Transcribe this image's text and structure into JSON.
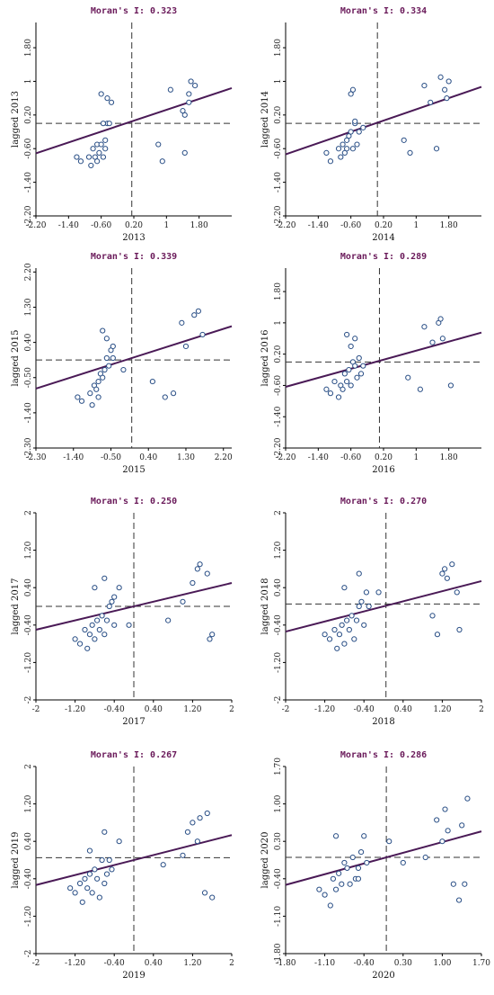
{
  "colors": {
    "title": "#6a1a5a",
    "point": "#2a4f86",
    "fit_line": "#4a1a56",
    "axis": "#000000"
  },
  "chart_data": [
    {
      "type": "scatter",
      "title": "Moran's I: 0.323",
      "xlabel": "2013",
      "ylabel": "lagged 2013",
      "xlim": [
        -2.2,
        2.6
      ],
      "ylim": [
        -2.2,
        2.4
      ],
      "xticks": [
        "-2.20",
        "-1.40",
        "-0.60",
        "0.20",
        "1",
        "1.80"
      ],
      "xtick_values": [
        -2.2,
        -1.4,
        -0.6,
        0.2,
        1,
        1.8
      ],
      "yticks": [
        "1.80",
        "1",
        "0.20",
        "-0.60",
        "-1.40",
        "-2.20"
      ],
      "ytick_values": [
        1.8,
        1.0,
        0.2,
        -0.6,
        -1.4,
        -2.2
      ],
      "vline": 0.15,
      "hline": 0.0,
      "slope": 0.323,
      "x": [
        -1.2,
        -1.1,
        -0.9,
        -0.85,
        -0.8,
        -0.75,
        -0.7,
        -0.7,
        -0.65,
        -0.6,
        -0.55,
        -0.5,
        -0.5,
        -0.45,
        -0.4,
        -0.55,
        -0.45,
        -0.6,
        -0.35,
        0.8,
        0.9,
        1.1,
        1.4,
        1.45,
        1.55,
        1.6,
        1.7,
        1.55,
        1.45
      ],
      "y": [
        -0.8,
        -0.9,
        -0.8,
        -1.0,
        -0.6,
        -0.8,
        -0.5,
        -0.9,
        -0.7,
        -0.5,
        -0.8,
        -0.6,
        -0.4,
        0.0,
        0.0,
        0.0,
        0.6,
        0.7,
        0.5,
        -0.5,
        -0.9,
        0.8,
        0.3,
        0.2,
        0.7,
        1.0,
        0.9,
        0.5,
        -0.7
      ]
    },
    {
      "type": "scatter",
      "title": "Moran's I: 0.334",
      "xlabel": "2014",
      "ylabel": "lagged 2014",
      "xlim": [
        -2.2,
        2.6
      ],
      "ylim": [
        -2.2,
        2.4
      ],
      "xticks": [
        "-2.20",
        "-1.40",
        "-0.60",
        "0.20",
        "1",
        "1.80"
      ],
      "xtick_values": [
        -2.2,
        -1.4,
        -0.6,
        0.2,
        1,
        1.8
      ],
      "yticks": [
        "1.80",
        "1",
        "0.20",
        "-0.60",
        "-1.40",
        "-2.20"
      ],
      "ytick_values": [
        1.8,
        1.0,
        0.2,
        -0.6,
        -1.4,
        -2.2
      ],
      "vline": 0.05,
      "hline": 0.0,
      "slope": 0.334,
      "x": [
        -1.2,
        -1.1,
        -0.9,
        -0.85,
        -0.8,
        -0.75,
        -0.7,
        -0.7,
        -0.65,
        -0.6,
        -0.55,
        -0.5,
        -0.5,
        -0.45,
        -0.4,
        -0.6,
        -0.55,
        -0.3,
        0.7,
        0.85,
        1.2,
        1.35,
        1.5,
        1.6,
        1.7,
        1.75,
        1.8
      ],
      "y": [
        -0.7,
        -0.9,
        -0.6,
        -0.8,
        -0.5,
        -0.7,
        -0.4,
        -0.6,
        -0.3,
        -0.2,
        -0.6,
        0.0,
        0.05,
        -0.5,
        -0.2,
        0.7,
        0.8,
        -0.1,
        -0.4,
        -0.7,
        0.9,
        0.5,
        -0.6,
        1.1,
        0.8,
        0.6,
        1.0
      ]
    },
    {
      "type": "scatter",
      "title": "Moran's I: 0.339",
      "xlabel": "2015",
      "ylabel": "lagged 2015",
      "xlim": [
        -2.3,
        2.4
      ],
      "ylim": [
        -2.3,
        2.3
      ],
      "xticks": [
        "-2.30",
        "-1.40",
        "-0.50",
        "0.40",
        "1.30",
        "2.20"
      ],
      "xtick_values": [
        -2.3,
        -1.4,
        -0.5,
        0.4,
        1.3,
        2.2
      ],
      "yticks": [
        "2.20",
        "1.30",
        "0.40",
        "-0.50",
        "-1.40",
        "-2.30"
      ],
      "ytick_values": [
        2.2,
        1.3,
        0.4,
        -0.5,
        -1.4,
        -2.3
      ],
      "vline": 0.0,
      "hline": -0.05,
      "slope": 0.339,
      "x": [
        -1.3,
        -1.2,
        -1.0,
        -0.95,
        -0.9,
        -0.85,
        -0.8,
        -0.8,
        -0.75,
        -0.7,
        -0.65,
        -0.6,
        -0.55,
        -0.5,
        -0.45,
        -0.7,
        -0.6,
        -0.45,
        -0.2,
        0.5,
        0.8,
        1.0,
        1.2,
        1.3,
        1.5,
        1.6,
        1.7
      ],
      "y": [
        -1.0,
        -1.1,
        -0.9,
        -1.2,
        -0.7,
        -0.8,
        -0.6,
        -1.0,
        -0.4,
        -0.5,
        -0.3,
        0.0,
        -0.2,
        0.2,
        0.0,
        0.7,
        0.5,
        0.3,
        -0.3,
        -0.6,
        -1.0,
        -0.9,
        0.9,
        0.3,
        1.1,
        1.2,
        0.6
      ]
    },
    {
      "type": "scatter",
      "title": "Moran's I: 0.289",
      "xlabel": "2016",
      "ylabel": "lagged 2016",
      "xlim": [
        -2.2,
        2.6
      ],
      "ylim": [
        -2.2,
        2.4
      ],
      "xticks": [
        "-2.20",
        "-1.40",
        "-0.60",
        "0.20",
        "1",
        "1.80"
      ],
      "xtick_values": [
        -2.2,
        -1.4,
        -0.6,
        0.2,
        1,
        1.8
      ],
      "yticks": [
        "1.80",
        "1",
        "0.20",
        "-0.60",
        "-1.40",
        "-2.20"
      ],
      "ytick_values": [
        1.8,
        1.0,
        0.2,
        -0.6,
        -1.4,
        -2.2
      ],
      "vline": 0.1,
      "hline": 0.0,
      "slope": 0.289,
      "x": [
        -1.2,
        -1.1,
        -1.0,
        -0.9,
        -0.85,
        -0.8,
        -0.75,
        -0.7,
        -0.65,
        -0.6,
        -0.55,
        -0.5,
        -0.45,
        -0.4,
        -0.35,
        -0.3,
        -0.7,
        -0.5,
        -0.6,
        0.8,
        1.1,
        1.2,
        1.4,
        1.55,
        1.6,
        1.65,
        1.85
      ],
      "y": [
        -0.7,
        -0.8,
        -0.5,
        -0.9,
        -0.6,
        -0.7,
        -0.3,
        -0.5,
        -0.2,
        -0.6,
        0.0,
        -0.1,
        -0.4,
        0.1,
        -0.3,
        -0.1,
        0.7,
        0.6,
        0.4,
        -0.4,
        -0.7,
        0.9,
        0.5,
        1.0,
        1.1,
        0.6,
        -0.6
      ]
    },
    {
      "type": "scatter",
      "title": "Moran's I: 0.250",
      "xlabel": "2017",
      "ylabel": "lagged 2017",
      "xlim": [
        -2,
        2
      ],
      "ylim": [
        -2,
        2
      ],
      "xticks": [
        "-2",
        "-1.20",
        "-0.40",
        "0.40",
        "1.20",
        "2"
      ],
      "xtick_values": [
        -2,
        -1.2,
        -0.4,
        0.4,
        1.2,
        2
      ],
      "yticks": [
        "2",
        "1.20",
        "0.40",
        "-0.40",
        "-1.20",
        "-2"
      ],
      "ytick_values": [
        2,
        1.2,
        0.4,
        -0.4,
        -1.2,
        -2
      ],
      "vline": 0.0,
      "hline": 0.0,
      "slope": 0.25,
      "x": [
        -1.2,
        -1.1,
        -1.0,
        -0.95,
        -0.9,
        -0.85,
        -0.8,
        -0.75,
        -0.7,
        -0.65,
        -0.6,
        -0.55,
        -0.5,
        -0.45,
        -0.4,
        -0.3,
        -0.8,
        -0.6,
        -0.4,
        -0.1,
        0.7,
        1.0,
        1.2,
        1.3,
        1.35,
        1.5,
        1.55,
        1.6
      ],
      "y": [
        -0.7,
        -0.8,
        -0.5,
        -0.9,
        -0.6,
        -0.4,
        -0.7,
        -0.3,
        -0.5,
        -0.2,
        -0.6,
        -0.3,
        0.0,
        0.1,
        -0.4,
        0.4,
        0.4,
        0.6,
        0.2,
        -0.4,
        -0.3,
        0.1,
        0.5,
        0.8,
        0.9,
        0.7,
        -0.7,
        -0.6
      ]
    },
    {
      "type": "scatter",
      "title": "Moran's I: 0.270",
      "xlabel": "2018",
      "ylabel": "lagged 2018",
      "xlim": [
        -2,
        2
      ],
      "ylim": [
        -2,
        2
      ],
      "xticks": [
        "-2",
        "-1.20",
        "-0.40",
        "0.40",
        "1.20",
        "2"
      ],
      "xtick_values": [
        -2,
        -1.2,
        -0.4,
        0.4,
        1.2,
        2
      ],
      "yticks": [
        "2",
        "1.20",
        "0.40",
        "-0.40",
        "-1.20",
        "-2"
      ],
      "ytick_values": [
        2,
        1.2,
        0.4,
        -0.4,
        -1.2,
        -2
      ],
      "vline": 0.05,
      "hline": 0.05,
      "slope": 0.27,
      "x": [
        -1.2,
        -1.1,
        -1.0,
        -0.95,
        -0.9,
        -0.85,
        -0.8,
        -0.75,
        -0.7,
        -0.65,
        -0.6,
        -0.55,
        -0.5,
        -0.45,
        -0.4,
        -0.35,
        -0.8,
        -0.5,
        -0.3,
        -0.1,
        1.0,
        1.1,
        1.2,
        1.25,
        1.3,
        1.4,
        1.5,
        1.55
      ],
      "y": [
        -0.6,
        -0.7,
        -0.5,
        -0.9,
        -0.6,
        -0.4,
        -0.8,
        -0.3,
        -0.5,
        -0.2,
        -0.7,
        -0.3,
        0.0,
        0.1,
        -0.4,
        0.3,
        0.4,
        0.7,
        0.0,
        0.3,
        -0.2,
        -0.6,
        0.7,
        0.8,
        0.6,
        0.9,
        0.3,
        -0.5
      ]
    },
    {
      "type": "scatter",
      "title": "Moran's I: 0.267",
      "xlabel": "2019",
      "ylabel": "lagged 2019",
      "xlim": [
        -2,
        2
      ],
      "ylim": [
        -2,
        2
      ],
      "xticks": [
        "-2",
        "-1.20",
        "-0.40",
        "0.40",
        "1.20",
        "2"
      ],
      "xtick_values": [
        -2,
        -1.2,
        -0.4,
        0.4,
        1.2,
        2
      ],
      "yticks": [
        "2",
        "1.20",
        "0.40",
        "-0.40",
        "-1.20",
        "-2"
      ],
      "ytick_values": [
        2,
        1.2,
        0.4,
        -0.4,
        -1.2,
        -2
      ],
      "vline": 0.0,
      "hline": 0.05,
      "slope": 0.267,
      "x": [
        -1.3,
        -1.2,
        -1.1,
        -1.05,
        -1.0,
        -0.95,
        -0.9,
        -0.85,
        -0.8,
        -0.75,
        -0.7,
        -0.65,
        -0.6,
        -0.55,
        -0.5,
        -0.45,
        -0.9,
        -0.6,
        -0.3,
        0.6,
        1.0,
        1.1,
        1.2,
        1.3,
        1.35,
        1.45,
        1.5,
        1.6
      ],
      "y": [
        -0.6,
        -0.7,
        -0.5,
        -0.9,
        -0.4,
        -0.6,
        -0.3,
        -0.7,
        -0.2,
        -0.4,
        -0.8,
        0.0,
        -0.5,
        -0.3,
        0.0,
        -0.2,
        0.2,
        0.6,
        0.4,
        -0.1,
        0.1,
        0.6,
        0.8,
        0.4,
        0.9,
        -0.7,
        1.0,
        -0.8
      ]
    },
    {
      "type": "scatter",
      "title": "Moran's I: 0.286",
      "xlabel": "2020",
      "ylabel": "lagged 2020",
      "xlim": [
        -1.8,
        1.7
      ],
      "ylim": [
        -1.8,
        1.7
      ],
      "xticks": [
        "-1.80",
        "-1.10",
        "-0.40",
        "0.30",
        "1.00",
        "1.70"
      ],
      "xtick_values": [
        -1.8,
        -1.1,
        -0.4,
        0.3,
        1.0,
        1.7
      ],
      "yticks": [
        "1.70",
        "1.00",
        "0.30",
        "-0.40",
        "-1.10",
        "-1.80"
      ],
      "ytick_values": [
        1.7,
        1.0,
        0.3,
        -0.4,
        -1.1,
        -1.8
      ],
      "vline": 0.0,
      "hline": 0.0,
      "slope": 0.286,
      "x": [
        -1.2,
        -1.1,
        -1.0,
        -0.95,
        -0.9,
        -0.85,
        -0.8,
        -0.75,
        -0.7,
        -0.65,
        -0.6,
        -0.55,
        -0.5,
        -0.45,
        -0.4,
        -0.35,
        -0.9,
        -0.5,
        0.05,
        0.3,
        0.7,
        0.9,
        1.0,
        1.05,
        1.1,
        1.2,
        1.3,
        1.35,
        1.4,
        1.45
      ],
      "y": [
        -0.6,
        -0.7,
        -0.9,
        -0.4,
        -0.6,
        -0.3,
        -0.5,
        -0.1,
        -0.2,
        -0.5,
        0.0,
        -0.4,
        -0.2,
        0.1,
        0.4,
        -0.1,
        0.4,
        -0.4,
        0.3,
        -0.1,
        0.0,
        0.7,
        0.3,
        0.9,
        0.5,
        -0.5,
        -0.8,
        0.6,
        -0.5,
        1.1
      ]
    }
  ]
}
